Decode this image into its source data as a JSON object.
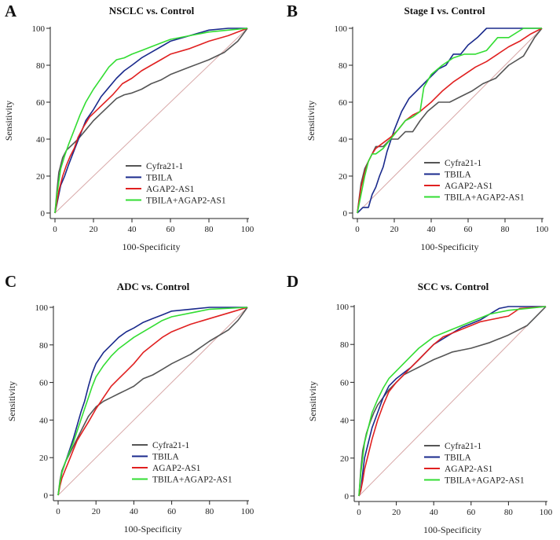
{
  "chart_data": [
    {
      "type": "line",
      "panel_letter": "A",
      "title": "NSCLC vs. Control",
      "xlabel": "100-Specificity",
      "ylabel": "Sensitivity",
      "xlim": [
        0,
        100
      ],
      "ylim": [
        0,
        100
      ],
      "xticks": [
        0,
        20,
        40,
        60,
        80,
        100
      ],
      "yticks": [
        0,
        20,
        40,
        60,
        80,
        100
      ],
      "legend_placement": "bottom-right",
      "reference_line": {
        "from": [
          0,
          0
        ],
        "to": [
          100,
          100
        ],
        "color": "#d8a8a8"
      },
      "series": [
        {
          "name": "Cyfra21-1",
          "color": "#555555",
          "x": [
            0,
            1,
            2,
            4,
            6,
            9,
            12,
            16,
            20,
            24,
            28,
            32,
            36,
            40,
            45,
            50,
            55,
            60,
            70,
            80,
            88,
            95,
            100
          ],
          "y": [
            0,
            12,
            22,
            30,
            34,
            37,
            40,
            45,
            50,
            54,
            58,
            62,
            64,
            65,
            67,
            70,
            72,
            75,
            79,
            83,
            87,
            93,
            100
          ]
        },
        {
          "name": "TBILA",
          "color": "#1a2a8c",
          "x": [
            0,
            1,
            2,
            3,
            5,
            7,
            10,
            13,
            16,
            20,
            24,
            28,
            32,
            36,
            40,
            45,
            50,
            55,
            60,
            70,
            80,
            90,
            100
          ],
          "y": [
            0,
            5,
            10,
            15,
            20,
            26,
            34,
            42,
            50,
            56,
            63,
            68,
            73,
            77,
            80,
            84,
            87,
            90,
            93,
            96,
            99,
            100,
            100
          ]
        },
        {
          "name": "AGAP2-AS1",
          "color": "#e02020",
          "x": [
            0,
            1,
            2,
            4,
            6,
            8,
            10,
            12,
            15,
            18,
            22,
            26,
            30,
            35,
            40,
            45,
            50,
            55,
            60,
            70,
            80,
            90,
            100
          ],
          "y": [
            0,
            6,
            12,
            20,
            26,
            31,
            35,
            41,
            47,
            52,
            56,
            60,
            64,
            70,
            73,
            77,
            80,
            83,
            86,
            89,
            93,
            96,
            100
          ]
        },
        {
          "name": "TBILA+AGAP2-AS1",
          "color": "#33dd33",
          "x": [
            0,
            1,
            2,
            3,
            5,
            7,
            10,
            13,
            16,
            20,
            24,
            28,
            32,
            36,
            40,
            45,
            50,
            55,
            60,
            70,
            80,
            90,
            100
          ],
          "y": [
            0,
            10,
            17,
            24,
            31,
            37,
            45,
            53,
            60,
            67,
            73,
            79,
            83,
            84,
            86,
            88,
            90,
            92,
            94,
            96,
            98,
            99,
            100
          ]
        }
      ]
    },
    {
      "type": "line",
      "panel_letter": "B",
      "title": "Stage I vs. Control",
      "xlabel": "100-Specificity",
      "ylabel": "Sensitivity",
      "xlim": [
        0,
        100
      ],
      "ylim": [
        0,
        100
      ],
      "xticks": [
        0,
        20,
        40,
        60,
        80,
        100
      ],
      "yticks": [
        0,
        20,
        40,
        60,
        80,
        100
      ],
      "legend_placement": "bottom-right",
      "reference_line": {
        "from": [
          0,
          0
        ],
        "to": [
          100,
          100
        ],
        "color": "#d8a8a8"
      },
      "series": [
        {
          "name": "Cyfra21-1",
          "color": "#555555",
          "x": [
            0,
            1,
            2,
            4,
            6,
            8,
            10,
            14,
            18,
            22,
            26,
            30,
            34,
            38,
            44,
            50,
            56,
            62,
            68,
            75,
            82,
            90,
            96,
            100
          ],
          "y": [
            0,
            8,
            16,
            24,
            28,
            32,
            36,
            36,
            40,
            40,
            44,
            44,
            50,
            55,
            60,
            60,
            63,
            66,
            70,
            73,
            80,
            85,
            95,
            100
          ]
        },
        {
          "name": "TBILA",
          "color": "#1a2a8c",
          "x": [
            0,
            3,
            6,
            8,
            10,
            12,
            14,
            16,
            20,
            24,
            28,
            32,
            36,
            40,
            44,
            48,
            52,
            56,
            60,
            65,
            70,
            75,
            100
          ],
          "y": [
            0,
            3,
            3,
            10,
            14,
            20,
            25,
            33,
            45,
            55,
            62,
            66,
            70,
            74,
            78,
            80,
            86,
            86,
            91,
            95,
            100,
            100,
            100
          ]
        },
        {
          "name": "AGAP2-AS1",
          "color": "#e02020",
          "x": [
            0,
            1,
            2,
            4,
            6,
            8,
            10,
            14,
            18,
            22,
            26,
            30,
            34,
            40,
            46,
            52,
            58,
            64,
            70,
            76,
            82,
            88,
            94,
            100
          ],
          "y": [
            0,
            7,
            14,
            22,
            28,
            32,
            35,
            38,
            41,
            45,
            50,
            53,
            55,
            60,
            66,
            71,
            75,
            79,
            82,
            86,
            90,
            93,
            97,
            100
          ]
        },
        {
          "name": "TBILA+AGAP2-AS1",
          "color": "#33dd33",
          "x": [
            0,
            1,
            2,
            4,
            6,
            8,
            10,
            14,
            18,
            22,
            26,
            30,
            34,
            36,
            40,
            46,
            52,
            58,
            64,
            70,
            76,
            82,
            90,
            100
          ],
          "y": [
            0,
            5,
            10,
            20,
            28,
            32,
            32,
            35,
            40,
            45,
            50,
            52,
            55,
            68,
            75,
            80,
            84,
            86,
            86,
            88,
            95,
            95,
            100,
            100
          ]
        }
      ]
    },
    {
      "type": "line",
      "panel_letter": "C",
      "title": "ADC vs. Control",
      "xlabel": "100-Specificity",
      "ylabel": "Sensitivity",
      "xlim": [
        0,
        100
      ],
      "ylim": [
        0,
        100
      ],
      "xticks": [
        0,
        20,
        40,
        60,
        80,
        100
      ],
      "yticks": [
        0,
        20,
        40,
        60,
        80,
        100
      ],
      "legend_placement": "bottom-right",
      "reference_line": {
        "from": [
          0,
          0
        ],
        "to": [
          100,
          100
        ],
        "color": "#d8a8a8"
      },
      "series": [
        {
          "name": "Cyfra21-1",
          "color": "#555555",
          "x": [
            0,
            1,
            2,
            4,
            6,
            8,
            10,
            13,
            16,
            20,
            24,
            28,
            32,
            36,
            40,
            45,
            50,
            55,
            60,
            70,
            80,
            90,
            95,
            100
          ],
          "y": [
            0,
            8,
            13,
            18,
            22,
            26,
            30,
            36,
            42,
            47,
            50,
            52,
            54,
            56,
            58,
            62,
            64,
            67,
            70,
            75,
            82,
            88,
            93,
            100
          ]
        },
        {
          "name": "TBILA",
          "color": "#1a2a8c",
          "x": [
            0,
            1,
            2,
            4,
            6,
            8,
            10,
            12,
            14,
            16,
            18,
            20,
            24,
            28,
            32,
            36,
            40,
            45,
            50,
            55,
            60,
            70,
            80,
            100
          ],
          "y": [
            0,
            6,
            12,
            18,
            24,
            30,
            37,
            44,
            50,
            58,
            65,
            70,
            76,
            80,
            84,
            87,
            89,
            92,
            94,
            96,
            98,
            99,
            100,
            100
          ]
        },
        {
          "name": "AGAP2-AS1",
          "color": "#e02020",
          "x": [
            0,
            1,
            2,
            4,
            6,
            8,
            10,
            13,
            16,
            20,
            24,
            28,
            32,
            36,
            40,
            45,
            50,
            55,
            60,
            65,
            70,
            80,
            90,
            100
          ],
          "y": [
            0,
            5,
            9,
            14,
            19,
            24,
            29,
            34,
            39,
            46,
            52,
            58,
            62,
            66,
            70,
            76,
            80,
            84,
            87,
            89,
            91,
            94,
            97,
            100
          ]
        },
        {
          "name": "TBILA+AGAP2-AS1",
          "color": "#33dd33",
          "x": [
            0,
            1,
            2,
            4,
            6,
            8,
            10,
            12,
            14,
            16,
            18,
            20,
            24,
            28,
            32,
            36,
            40,
            45,
            50,
            55,
            60,
            70,
            80,
            100
          ],
          "y": [
            0,
            7,
            12,
            18,
            23,
            28,
            34,
            40,
            46,
            52,
            58,
            63,
            69,
            74,
            78,
            81,
            84,
            87,
            90,
            93,
            95,
            97,
            99,
            100
          ]
        }
      ]
    },
    {
      "type": "line",
      "panel_letter": "D",
      "title": "SCC vs. Control",
      "xlabel": "100-Specificity",
      "ylabel": "Sensitivity",
      "xlim": [
        0,
        100
      ],
      "ylim": [
        0,
        100
      ],
      "xticks": [
        0,
        20,
        40,
        60,
        80,
        100
      ],
      "yticks": [
        0,
        20,
        40,
        60,
        80,
        100
      ],
      "legend_placement": "bottom-right",
      "reference_line": {
        "from": [
          0,
          0
        ],
        "to": [
          100,
          100
        ],
        "color": "#d8a8a8"
      },
      "series": [
        {
          "name": "Cyfra21-1",
          "color": "#555555",
          "x": [
            0,
            1,
            2,
            4,
            6,
            8,
            10,
            13,
            16,
            20,
            24,
            28,
            32,
            36,
            40,
            45,
            50,
            55,
            60,
            70,
            80,
            90,
            95,
            100
          ],
          "y": [
            0,
            14,
            24,
            33,
            39,
            44,
            48,
            52,
            56,
            60,
            64,
            66,
            68,
            70,
            72,
            74,
            76,
            77,
            78,
            81,
            85,
            90,
            95,
            100
          ]
        },
        {
          "name": "TBILA",
          "color": "#1a2a8c",
          "x": [
            0,
            1,
            2,
            3,
            5,
            7,
            10,
            13,
            16,
            20,
            24,
            28,
            32,
            36,
            40,
            45,
            50,
            55,
            60,
            65,
            70,
            75,
            80,
            100
          ],
          "y": [
            0,
            3,
            12,
            20,
            28,
            36,
            44,
            52,
            58,
            62,
            65,
            68,
            72,
            76,
            80,
            83,
            86,
            89,
            91,
            93,
            96,
            99,
            100,
            100
          ]
        },
        {
          "name": "AGAP2-AS1",
          "color": "#e02020",
          "x": [
            0,
            1,
            2,
            3,
            5,
            7,
            10,
            13,
            16,
            20,
            24,
            28,
            32,
            36,
            40,
            45,
            50,
            55,
            60,
            65,
            70,
            80,
            86,
            100
          ],
          "y": [
            0,
            3,
            8,
            14,
            22,
            30,
            40,
            48,
            55,
            60,
            64,
            68,
            72,
            76,
            80,
            84,
            86,
            88,
            90,
            92,
            93,
            95,
            99,
            100
          ]
        },
        {
          "name": "TBILA+AGAP2-AS1",
          "color": "#33dd33",
          "x": [
            0,
            1,
            2,
            3,
            5,
            7,
            10,
            13,
            16,
            20,
            24,
            28,
            32,
            36,
            40,
            45,
            50,
            55,
            60,
            65,
            70,
            80,
            90,
            100
          ],
          "y": [
            0,
            12,
            20,
            28,
            36,
            44,
            51,
            57,
            62,
            66,
            70,
            74,
            78,
            81,
            84,
            86,
            88,
            90,
            92,
            94,
            96,
            98,
            99,
            100
          ]
        }
      ]
    }
  ]
}
